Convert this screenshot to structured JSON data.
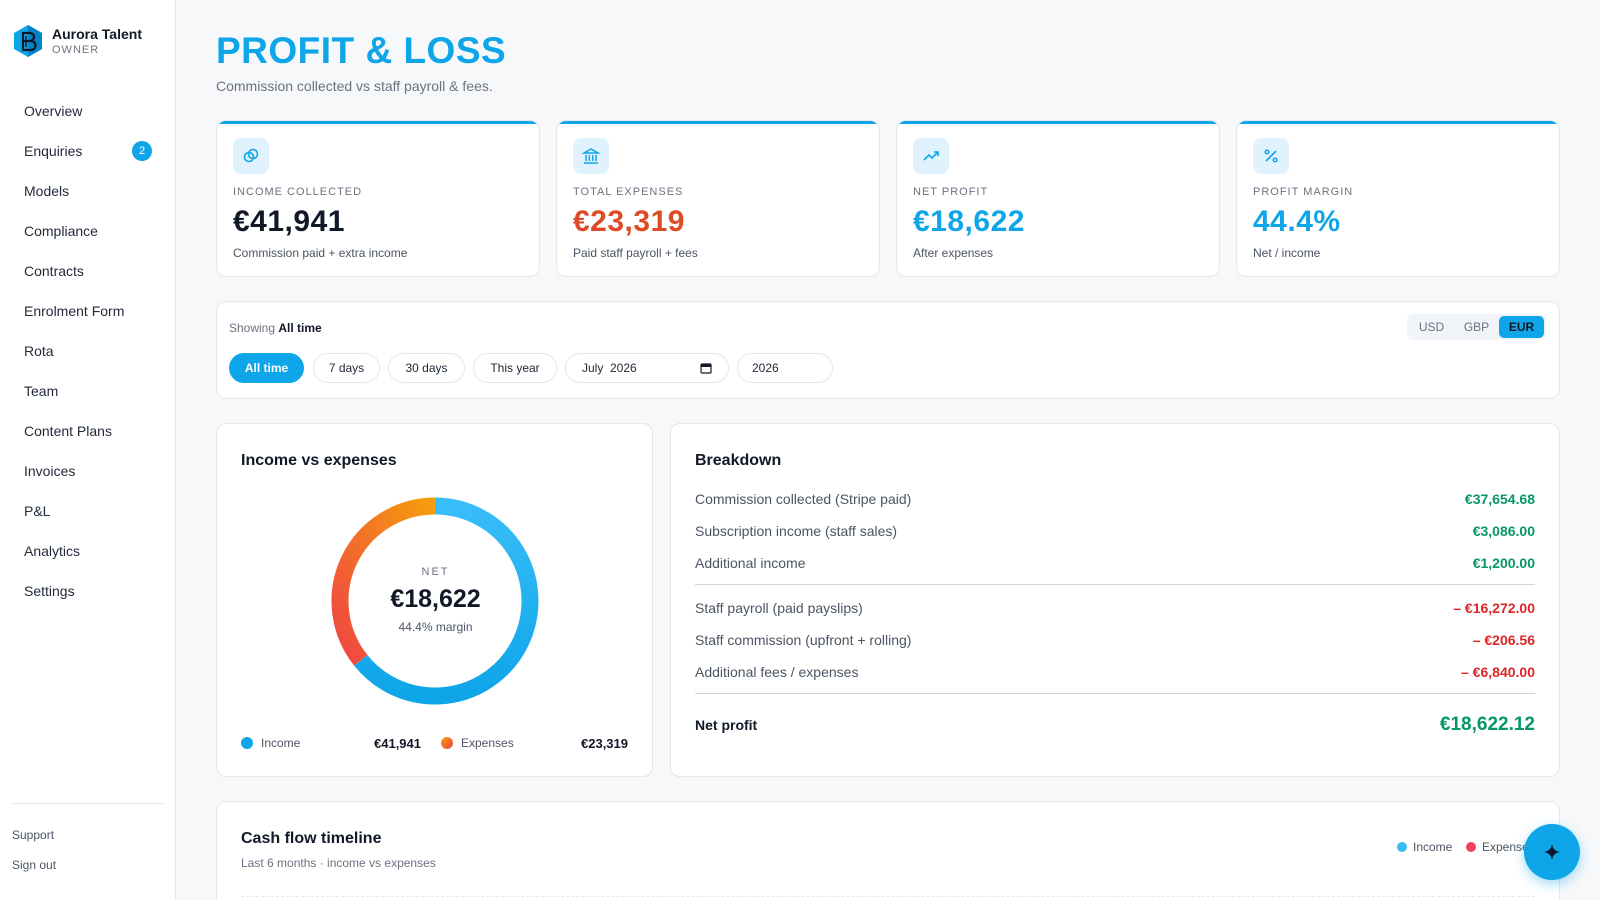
{
  "brand": {
    "name": "Aurora Talent",
    "role": "OWNER",
    "logo_icon": "hexagon-b-logo-icon"
  },
  "nav": {
    "items": [
      {
        "label": "Overview"
      },
      {
        "label": "Enquiries",
        "badge": "2"
      },
      {
        "label": "Models"
      },
      {
        "label": "Compliance"
      },
      {
        "label": "Contracts"
      },
      {
        "label": "Enrolment Form"
      },
      {
        "label": "Rota"
      },
      {
        "label": "Team"
      },
      {
        "label": "Content Plans"
      },
      {
        "label": "Invoices"
      },
      {
        "label": "P&L"
      },
      {
        "label": "Analytics"
      },
      {
        "label": "Settings"
      }
    ],
    "support": "Support",
    "sign_out": "Sign out"
  },
  "header": {
    "title": "PROFIT & LOSS",
    "subtitle": "Commission collected vs staff payroll & fees."
  },
  "stats": [
    {
      "label": "INCOME COLLECTED",
      "value": "€41,941",
      "note": "Commission paid + extra income",
      "icon": "coins-icon",
      "color": "#111827"
    },
    {
      "label": "TOTAL EXPENSES",
      "value": "€23,319",
      "note": "Paid staff payroll + fees",
      "icon": "bank-icon",
      "color": "#dc4a26"
    },
    {
      "label": "NET PROFIT",
      "value": "€18,622",
      "note": "After expenses",
      "icon": "trend-up-icon",
      "color": "#0ea5e9"
    },
    {
      "label": "PROFIT MARGIN",
      "value": "44.4%",
      "note": "Net / income",
      "icon": "percent-icon",
      "color": "#0ea5e9"
    }
  ],
  "filter": {
    "showing_prefix": "Showing",
    "showing_value": "All time",
    "ranges": [
      "All time",
      "7 days",
      "30 days",
      "This year"
    ],
    "active_range": "All time",
    "month_value": "July  2026",
    "year_value": "2026",
    "currencies": [
      "USD",
      "GBP",
      "EUR"
    ],
    "active_currency": "EUR"
  },
  "donut": {
    "title": "Income vs expenses",
    "center_label": "NET",
    "center_value": "€18,622",
    "center_note": "44.4% margin",
    "income_label": "Income",
    "income_value": "€41,941",
    "expenses_label": "Expenses",
    "expenses_value": "€23,319",
    "income_share": 0.6427,
    "expenses_share": 0.3573,
    "income_color": "#0ea5e9",
    "expenses_color": "#f97316"
  },
  "breakdown": {
    "title": "Breakdown",
    "income_rows": [
      {
        "label": "Commission collected (Stripe paid)",
        "value": "€37,654.68"
      },
      {
        "label": "Subscription income (staff sales)",
        "value": "€3,086.00"
      },
      {
        "label": "Additional income",
        "value": "€1,200.00"
      }
    ],
    "expense_rows": [
      {
        "label": "Staff payroll (paid payslips)",
        "value": "– €16,272.00"
      },
      {
        "label": "Staff commission (upfront + rolling)",
        "value": "– €206.56"
      },
      {
        "label": "Additional fees / expenses",
        "value": "– €6,840.00"
      }
    ],
    "net_label": "Net profit",
    "net_value": "€18,622.12"
  },
  "cashflow": {
    "title": "Cash flow timeline",
    "subtitle": "Last 6 months · income vs expenses",
    "legend_income": "Income",
    "legend_expenses": "Expenses",
    "income_color": "#38bdf8",
    "expenses_color": "#f43f5e"
  },
  "fab": {
    "icon": "sparkle-icon"
  }
}
